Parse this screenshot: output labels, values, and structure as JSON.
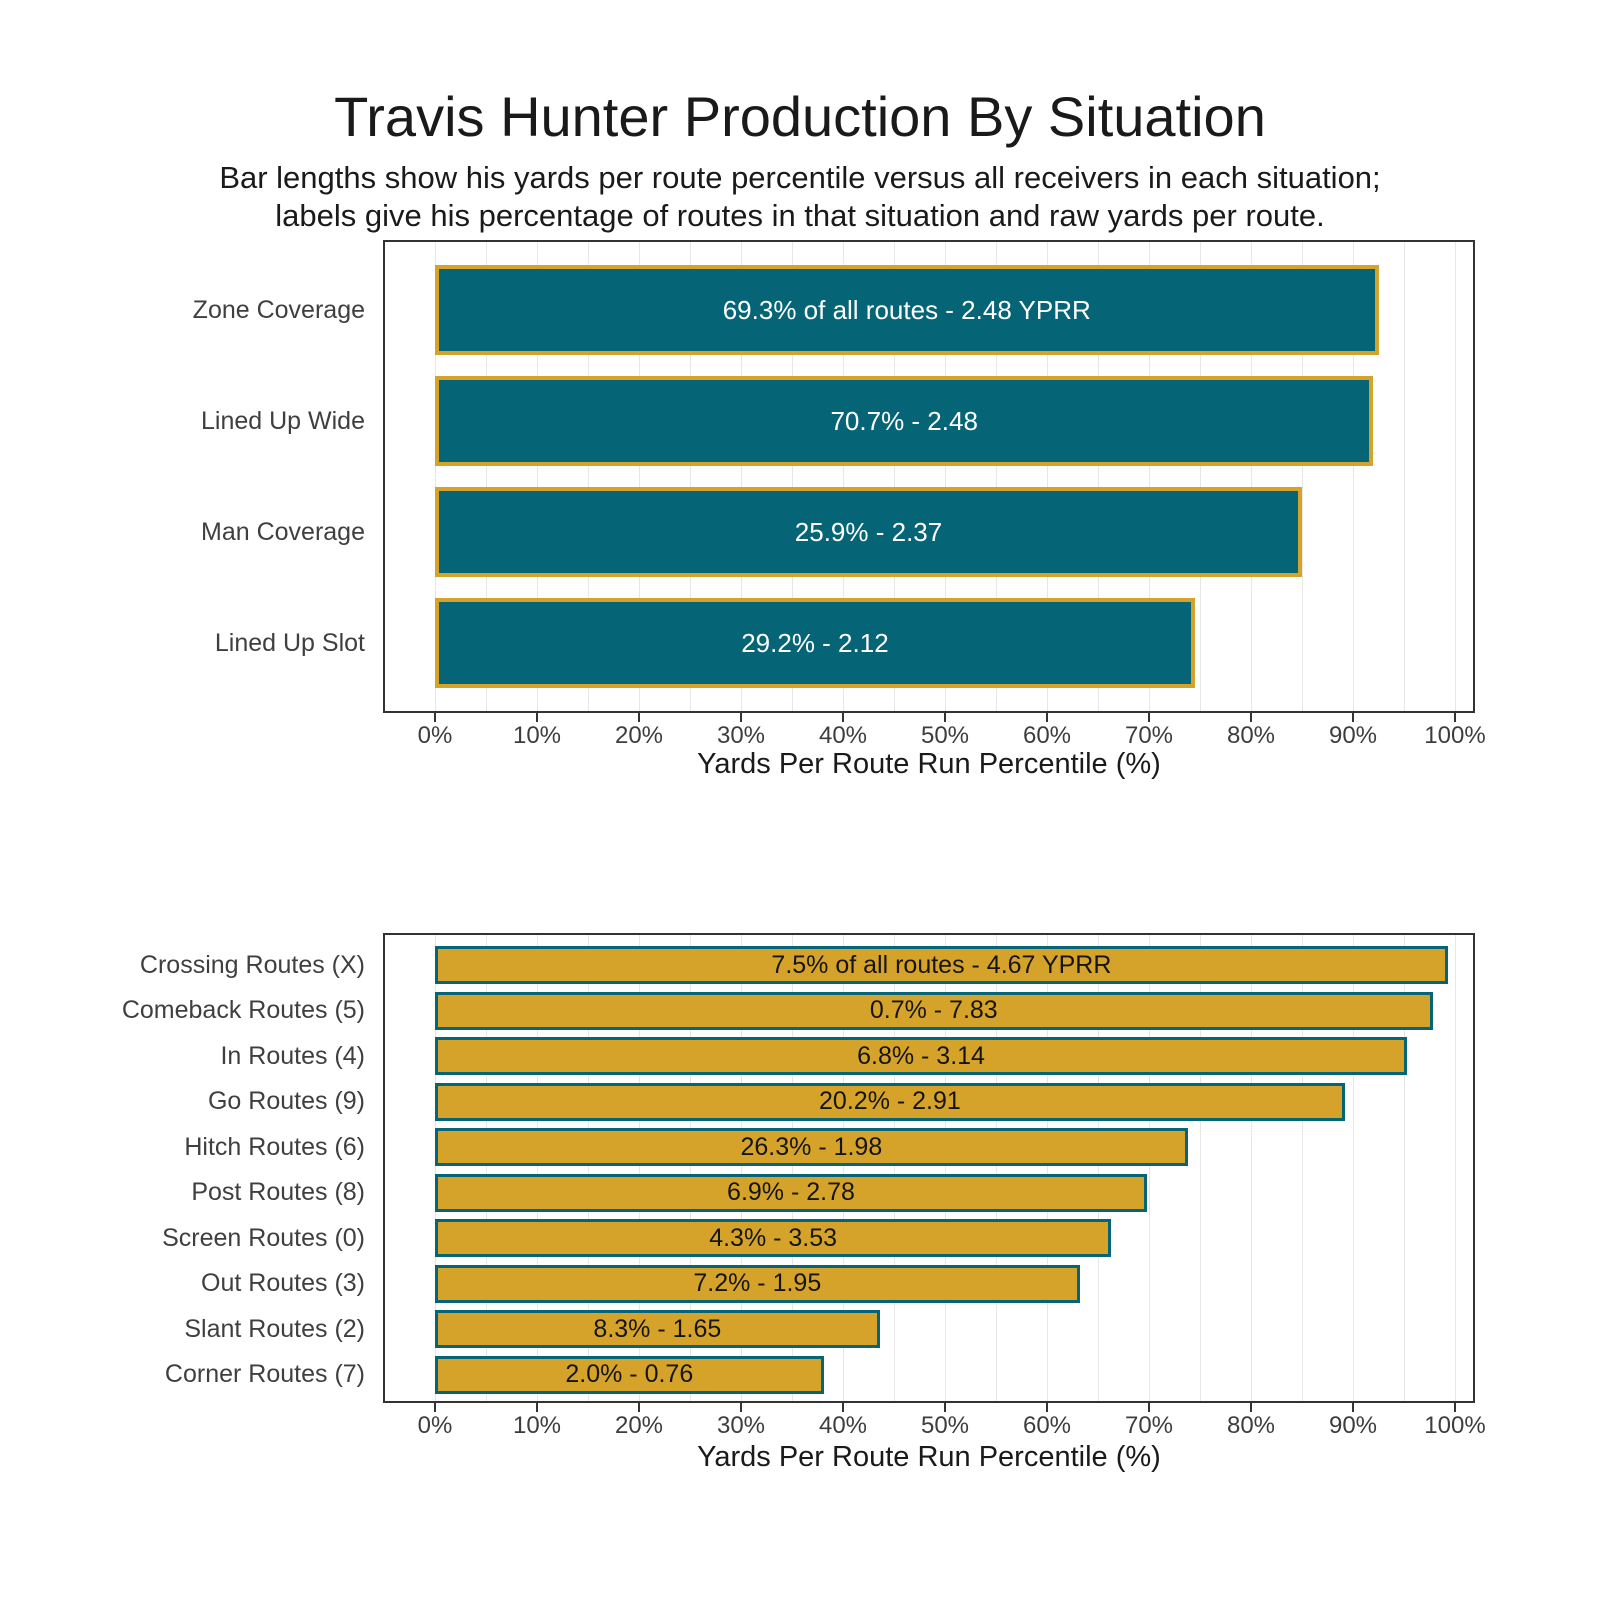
{
  "title": "Travis Hunter Production By Situation",
  "subtitle": {
    "line1": "Bar lengths show his yards per route percentile versus all receivers in each situation;",
    "line2": "labels give his percentage of routes in that situation and raw yards per route."
  },
  "colors": {
    "teal": "#056577",
    "gold": "#d6a32a",
    "bar_label_light": "#ffffff",
    "bar_label_dark": "#151515",
    "axis_text": "#3d3d3d",
    "grid": "#e6e6e6"
  },
  "x_axis": {
    "tick_labels": [
      "0%",
      "10%",
      "20%",
      "30%",
      "40%",
      "50%",
      "60%",
      "70%",
      "80%",
      "90%",
      "100%"
    ],
    "title": "Yards Per Route Run Percentile (%)"
  },
  "chart_data": [
    {
      "type": "bar",
      "orientation": "horizontal",
      "name": "production-by-situation",
      "xlabel": "Yards Per Route Run Percentile (%)",
      "xlim": [
        0,
        100
      ],
      "grid": "on",
      "categories": [
        "Zone Coverage",
        "Lined Up Wide",
        "Man Coverage",
        "Lined Up Slot"
      ],
      "values": [
        92.5,
        92.0,
        85.0,
        74.5
      ],
      "bar_labels": [
        "69.3% of all routes - 2.48 YPRR",
        "70.7% - 2.48",
        "25.9% - 2.37",
        "29.2% - 2.12"
      ],
      "routes_pct": [
        69.3,
        70.7,
        25.9,
        29.2
      ],
      "yprr": [
        2.48,
        2.48,
        2.37,
        2.12
      ]
    },
    {
      "type": "bar",
      "orientation": "horizontal",
      "name": "production-by-route",
      "xlabel": "Yards Per Route Run Percentile (%)",
      "xlim": [
        0,
        100
      ],
      "grid": "on",
      "categories": [
        "Crossing Routes (X)",
        "Comeback Routes (5)",
        "In Routes (4)",
        "Go Routes (9)",
        "Hitch Routes (6)",
        "Post Routes (8)",
        "Screen Routes (0)",
        "Out Routes (3)",
        "Slant Routes (2)",
        "Corner Routes (7)"
      ],
      "values": [
        99.3,
        97.8,
        95.3,
        89.2,
        73.8,
        69.8,
        66.3,
        63.2,
        43.6,
        38.1
      ],
      "bar_labels": [
        "7.5% of all routes - 4.67 YPRR",
        "0.7% - 7.83",
        "6.8% - 3.14",
        "20.2% - 2.91",
        "26.3% - 1.98",
        "6.9% - 2.78",
        "4.3% - 3.53",
        "7.2% - 1.95",
        "8.3% - 1.65",
        "2.0% - 0.76"
      ],
      "routes_pct": [
        7.5,
        0.7,
        6.8,
        20.2,
        26.3,
        6.9,
        4.3,
        7.2,
        8.3,
        2.0
      ],
      "yprr": [
        4.67,
        7.83,
        3.14,
        2.91,
        1.98,
        2.78,
        3.53,
        1.95,
        1.65,
        0.76
      ]
    }
  ]
}
